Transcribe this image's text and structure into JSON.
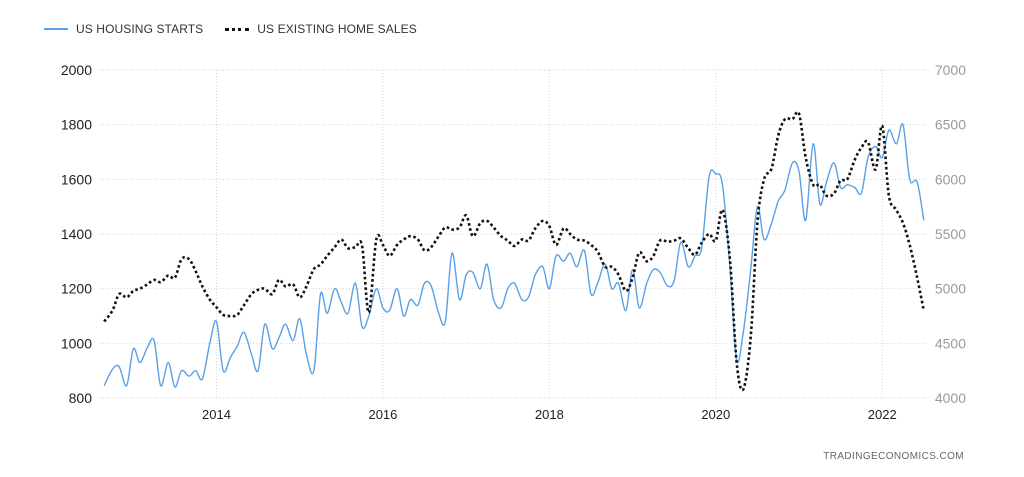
{
  "legend": {
    "series1": "US HOUSING STARTS",
    "series2": "US EXISTING HOME SALES"
  },
  "source": "TRADINGECONOMICS.COM",
  "colors": {
    "series1": "#5aa0e6",
    "series2": "#111111",
    "grid": "#d6d6d6",
    "left_axis_text": "#222222",
    "right_axis_text": "#9a9a9a"
  },
  "chart_data": {
    "type": "line",
    "title": "",
    "xlabel": "",
    "x_ticks": [
      "2014",
      "2016",
      "2018",
      "2020",
      "2022"
    ],
    "xlim": [
      2012.6,
      2022.55
    ],
    "y_left": {
      "lim": [
        800,
        2000
      ],
      "ticks": [
        800,
        1000,
        1200,
        1400,
        1600,
        1800,
        2000
      ]
    },
    "y_right": {
      "lim": [
        4000,
        7000
      ],
      "ticks": [
        4000,
        4500,
        5000,
        5500,
        6000,
        6500,
        7000
      ]
    },
    "grid": true,
    "legend_position": "top-left",
    "series": [
      {
        "name": "US HOUSING STARTS",
        "axis": "left",
        "style": "solid",
        "points": [
          [
            2012.65,
            845
          ],
          [
            2012.75,
            905
          ],
          [
            2012.83,
            915
          ],
          [
            2012.92,
            845
          ],
          [
            2013.0,
            980
          ],
          [
            2013.08,
            930
          ],
          [
            2013.17,
            985
          ],
          [
            2013.25,
            1010
          ],
          [
            2013.33,
            845
          ],
          [
            2013.42,
            930
          ],
          [
            2013.5,
            840
          ],
          [
            2013.58,
            900
          ],
          [
            2013.67,
            880
          ],
          [
            2013.75,
            900
          ],
          [
            2013.83,
            870
          ],
          [
            2013.92,
            1000
          ],
          [
            2014.0,
            1080
          ],
          [
            2014.08,
            900
          ],
          [
            2014.17,
            950
          ],
          [
            2014.25,
            990
          ],
          [
            2014.33,
            1040
          ],
          [
            2014.42,
            960
          ],
          [
            2014.5,
            900
          ],
          [
            2014.58,
            1070
          ],
          [
            2014.67,
            980
          ],
          [
            2014.75,
            1020
          ],
          [
            2014.83,
            1070
          ],
          [
            2014.92,
            1010
          ],
          [
            2015.0,
            1090
          ],
          [
            2015.08,
            960
          ],
          [
            2015.17,
            900
          ],
          [
            2015.25,
            1180
          ],
          [
            2015.33,
            1110
          ],
          [
            2015.42,
            1200
          ],
          [
            2015.5,
            1150
          ],
          [
            2015.58,
            1110
          ],
          [
            2015.67,
            1220
          ],
          [
            2015.75,
            1060
          ],
          [
            2015.83,
            1100
          ],
          [
            2015.92,
            1200
          ],
          [
            2016.0,
            1130
          ],
          [
            2016.08,
            1120
          ],
          [
            2016.17,
            1200
          ],
          [
            2016.25,
            1100
          ],
          [
            2016.33,
            1160
          ],
          [
            2016.42,
            1140
          ],
          [
            2016.5,
            1220
          ],
          [
            2016.58,
            1210
          ],
          [
            2016.67,
            1110
          ],
          [
            2016.75,
            1080
          ],
          [
            2016.83,
            1330
          ],
          [
            2016.92,
            1160
          ],
          [
            2017.0,
            1250
          ],
          [
            2017.08,
            1260
          ],
          [
            2017.17,
            1200
          ],
          [
            2017.25,
            1290
          ],
          [
            2017.33,
            1160
          ],
          [
            2017.42,
            1130
          ],
          [
            2017.5,
            1200
          ],
          [
            2017.58,
            1220
          ],
          [
            2017.67,
            1160
          ],
          [
            2017.75,
            1170
          ],
          [
            2017.83,
            1250
          ],
          [
            2017.92,
            1280
          ],
          [
            2018.0,
            1200
          ],
          [
            2018.08,
            1320
          ],
          [
            2018.17,
            1300
          ],
          [
            2018.25,
            1330
          ],
          [
            2018.33,
            1280
          ],
          [
            2018.42,
            1340
          ],
          [
            2018.5,
            1180
          ],
          [
            2018.58,
            1220
          ],
          [
            2018.67,
            1290
          ],
          [
            2018.75,
            1200
          ],
          [
            2018.83,
            1220
          ],
          [
            2018.92,
            1120
          ],
          [
            2019.0,
            1270
          ],
          [
            2019.08,
            1130
          ],
          [
            2019.17,
            1220
          ],
          [
            2019.25,
            1270
          ],
          [
            2019.33,
            1260
          ],
          [
            2019.42,
            1210
          ],
          [
            2019.5,
            1230
          ],
          [
            2019.58,
            1370
          ],
          [
            2019.67,
            1280
          ],
          [
            2019.75,
            1320
          ],
          [
            2019.83,
            1350
          ],
          [
            2019.92,
            1610
          ],
          [
            2020.0,
            1620
          ],
          [
            2020.08,
            1580
          ],
          [
            2020.17,
            1280
          ],
          [
            2020.25,
            940
          ],
          [
            2020.33,
            1040
          ],
          [
            2020.42,
            1270
          ],
          [
            2020.5,
            1500
          ],
          [
            2020.58,
            1380
          ],
          [
            2020.67,
            1440
          ],
          [
            2020.75,
            1520
          ],
          [
            2020.83,
            1560
          ],
          [
            2020.92,
            1660
          ],
          [
            2021.0,
            1630
          ],
          [
            2021.08,
            1450
          ],
          [
            2021.17,
            1730
          ],
          [
            2021.25,
            1510
          ],
          [
            2021.33,
            1590
          ],
          [
            2021.42,
            1660
          ],
          [
            2021.5,
            1570
          ],
          [
            2021.58,
            1580
          ],
          [
            2021.67,
            1570
          ],
          [
            2021.75,
            1550
          ],
          [
            2021.83,
            1680
          ],
          [
            2021.92,
            1720
          ],
          [
            2022.0,
            1680
          ],
          [
            2022.08,
            1780
          ],
          [
            2022.17,
            1730
          ],
          [
            2022.25,
            1800
          ],
          [
            2022.33,
            1600
          ],
          [
            2022.42,
            1590
          ],
          [
            2022.5,
            1450
          ]
        ]
      },
      {
        "name": "US EXISTING HOME SALES",
        "axis": "right",
        "style": "dotted",
        "points": [
          [
            2012.65,
            4700
          ],
          [
            2012.75,
            4800
          ],
          [
            2012.83,
            4950
          ],
          [
            2012.92,
            4920
          ],
          [
            2013.0,
            4980
          ],
          [
            2013.08,
            5000
          ],
          [
            2013.17,
            5040
          ],
          [
            2013.25,
            5080
          ],
          [
            2013.33,
            5060
          ],
          [
            2013.42,
            5120
          ],
          [
            2013.5,
            5100
          ],
          [
            2013.58,
            5270
          ],
          [
            2013.67,
            5270
          ],
          [
            2013.75,
            5160
          ],
          [
            2013.83,
            5020
          ],
          [
            2013.92,
            4900
          ],
          [
            2014.0,
            4830
          ],
          [
            2014.08,
            4760
          ],
          [
            2014.17,
            4750
          ],
          [
            2014.25,
            4760
          ],
          [
            2014.33,
            4850
          ],
          [
            2014.42,
            4950
          ],
          [
            2014.5,
            4990
          ],
          [
            2014.58,
            5000
          ],
          [
            2014.67,
            4950
          ],
          [
            2014.75,
            5080
          ],
          [
            2014.83,
            5020
          ],
          [
            2014.92,
            5040
          ],
          [
            2015.0,
            4920
          ],
          [
            2015.08,
            5020
          ],
          [
            2015.17,
            5180
          ],
          [
            2015.25,
            5220
          ],
          [
            2015.33,
            5300
          ],
          [
            2015.42,
            5380
          ],
          [
            2015.5,
            5450
          ],
          [
            2015.58,
            5370
          ],
          [
            2015.67,
            5380
          ],
          [
            2015.75,
            5390
          ],
          [
            2015.83,
            4780
          ],
          [
            2015.92,
            5450
          ],
          [
            2016.0,
            5400
          ],
          [
            2016.08,
            5300
          ],
          [
            2016.17,
            5400
          ],
          [
            2016.25,
            5450
          ],
          [
            2016.33,
            5480
          ],
          [
            2016.42,
            5450
          ],
          [
            2016.5,
            5350
          ],
          [
            2016.58,
            5380
          ],
          [
            2016.67,
            5480
          ],
          [
            2016.75,
            5560
          ],
          [
            2016.83,
            5540
          ],
          [
            2016.92,
            5560
          ],
          [
            2017.0,
            5670
          ],
          [
            2017.08,
            5480
          ],
          [
            2017.17,
            5600
          ],
          [
            2017.25,
            5620
          ],
          [
            2017.33,
            5560
          ],
          [
            2017.42,
            5480
          ],
          [
            2017.5,
            5440
          ],
          [
            2017.58,
            5390
          ],
          [
            2017.67,
            5450
          ],
          [
            2017.75,
            5440
          ],
          [
            2017.83,
            5550
          ],
          [
            2017.92,
            5620
          ],
          [
            2018.0,
            5570
          ],
          [
            2018.08,
            5400
          ],
          [
            2018.17,
            5550
          ],
          [
            2018.25,
            5500
          ],
          [
            2018.33,
            5450
          ],
          [
            2018.42,
            5440
          ],
          [
            2018.5,
            5400
          ],
          [
            2018.58,
            5340
          ],
          [
            2018.67,
            5200
          ],
          [
            2018.75,
            5200
          ],
          [
            2018.83,
            5130
          ],
          [
            2018.92,
            4980
          ],
          [
            2019.0,
            5100
          ],
          [
            2019.08,
            5330
          ],
          [
            2019.17,
            5250
          ],
          [
            2019.25,
            5300
          ],
          [
            2019.33,
            5440
          ],
          [
            2019.42,
            5430
          ],
          [
            2019.5,
            5440
          ],
          [
            2019.58,
            5460
          ],
          [
            2019.67,
            5370
          ],
          [
            2019.75,
            5310
          ],
          [
            2019.83,
            5420
          ],
          [
            2019.92,
            5500
          ],
          [
            2020.0,
            5440
          ],
          [
            2020.08,
            5720
          ],
          [
            2020.17,
            5270
          ],
          [
            2020.25,
            4330
          ],
          [
            2020.33,
            4080
          ],
          [
            2020.42,
            4560
          ],
          [
            2020.5,
            5600
          ],
          [
            2020.58,
            6000
          ],
          [
            2020.67,
            6100
          ],
          [
            2020.75,
            6400
          ],
          [
            2020.83,
            6550
          ],
          [
            2020.92,
            6550
          ],
          [
            2021.0,
            6600
          ],
          [
            2021.08,
            6200
          ],
          [
            2021.17,
            5950
          ],
          [
            2021.25,
            5950
          ],
          [
            2021.33,
            5850
          ],
          [
            2021.42,
            5870
          ],
          [
            2021.5,
            5990
          ],
          [
            2021.58,
            6000
          ],
          [
            2021.67,
            6180
          ],
          [
            2021.75,
            6290
          ],
          [
            2021.83,
            6340
          ],
          [
            2021.92,
            6090
          ],
          [
            2022.0,
            6490
          ],
          [
            2022.08,
            5850
          ],
          [
            2022.17,
            5720
          ],
          [
            2022.25,
            5600
          ],
          [
            2022.33,
            5400
          ],
          [
            2022.42,
            5100
          ],
          [
            2022.5,
            4800
          ]
        ]
      }
    ]
  }
}
